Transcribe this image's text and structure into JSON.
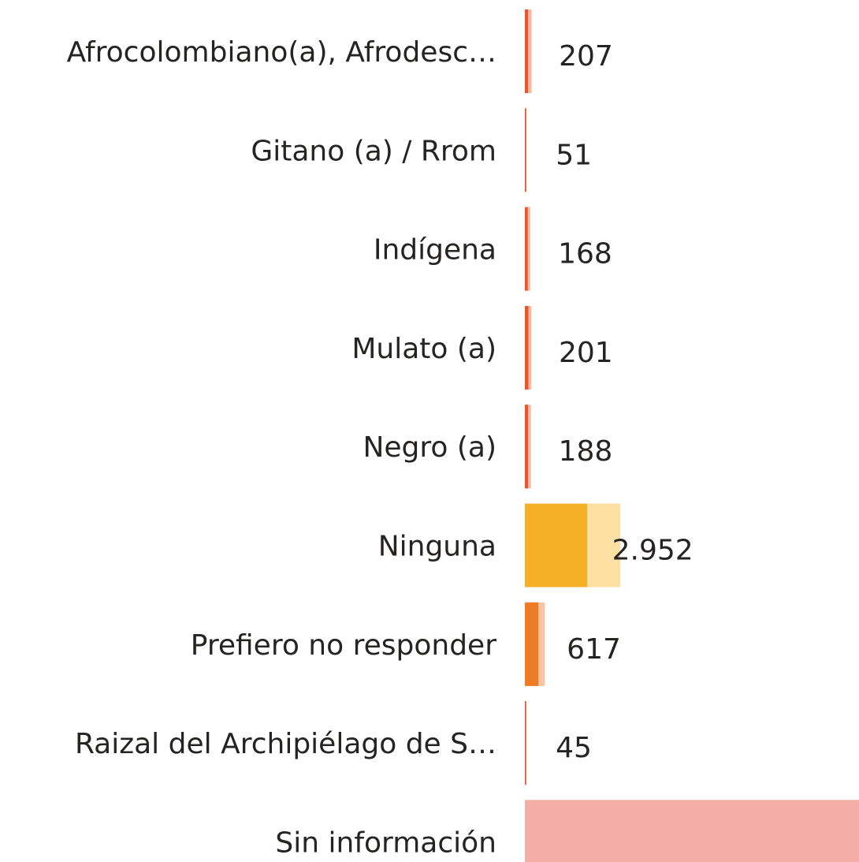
{
  "chart_data": {
    "type": "bar",
    "orientation": "horizontal",
    "categories": [
      "Afrocolombiano(a), Afrodesc…",
      "Gitano (a) / Rrom",
      "Indígena",
      "Mulato (a)",
      "Negro (a)",
      "Ninguna",
      "Prefiero no responder",
      "Raizal del Archipiélago de S…",
      "Sin información"
    ],
    "values": [
      207,
      51,
      168,
      201,
      188,
      2952,
      617,
      45,
      10500
    ],
    "value_labels": [
      "207",
      "51",
      "168",
      "201",
      "188",
      "2.952",
      "617",
      "45",
      null
    ],
    "highlighted": [
      100,
      40,
      90,
      110,
      100,
      1930,
      420,
      40,
      10500
    ],
    "colors": [
      "#f4b9a4",
      "#f4b9a4",
      "#f4b9a4",
      "#f4b9a4",
      "#f4b9a4",
      "#fbdfa3",
      "#f8c5a0",
      "#f4b9a4",
      "#f2aea7"
    ],
    "highlight_colors": [
      "#e8572a",
      "#e8572a",
      "#e8572a",
      "#e8572a",
      "#e8572a",
      "#f5b02a",
      "#ee7b26",
      "#e8572a",
      "#f2aea7"
    ]
  }
}
